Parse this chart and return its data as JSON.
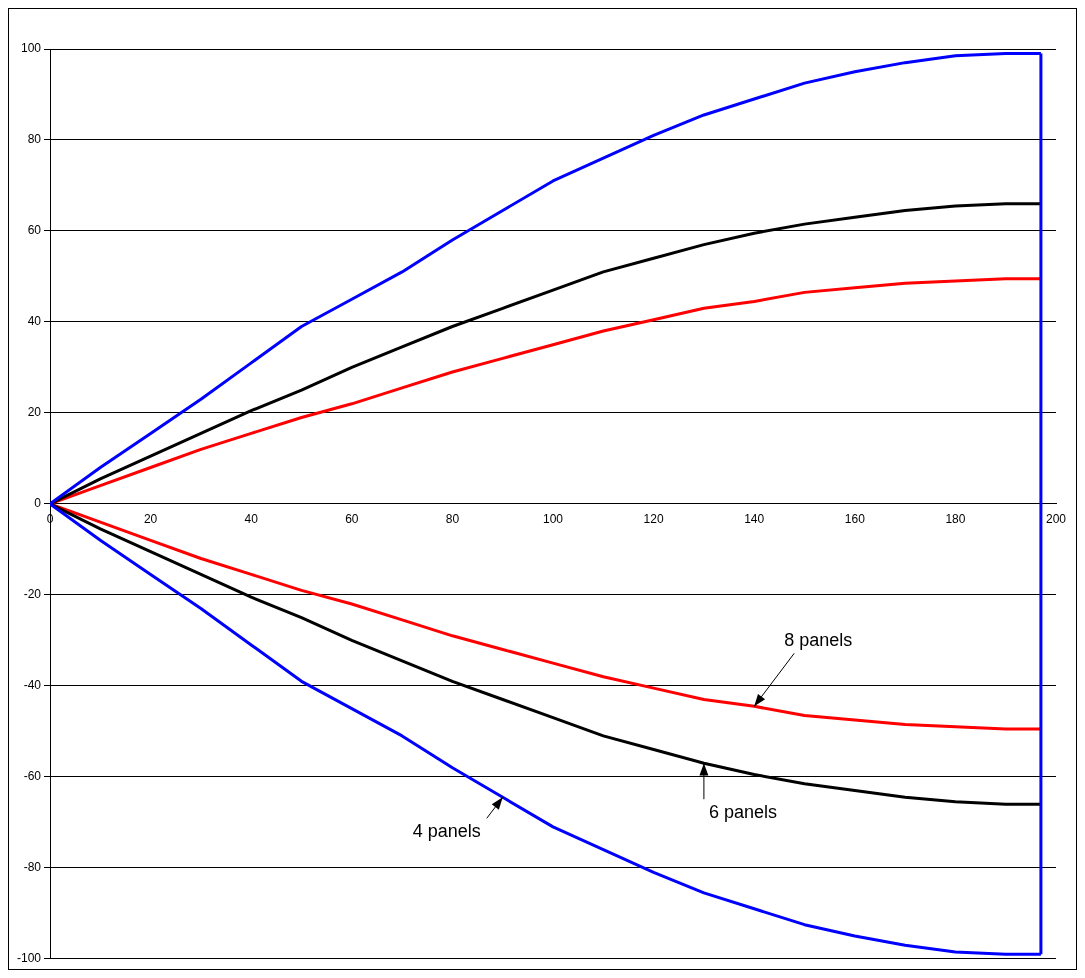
{
  "chart_data": {
    "type": "line",
    "xlim": [
      0,
      200
    ],
    "xticks": [
      0,
      20,
      40,
      60,
      80,
      100,
      120,
      140,
      160,
      180,
      200
    ],
    "ylim": [
      -100,
      100
    ],
    "yticks": [
      -100,
      -80,
      -60,
      -40,
      -20,
      0,
      20,
      40,
      60,
      80,
      100
    ],
    "grid": "y",
    "legend": false,
    "marker": "none",
    "line_style": "solid",
    "series": [
      {
        "color": "#0000ff",
        "x": [
          0,
          10,
          20,
          30,
          40,
          50,
          60,
          70,
          80,
          90,
          100,
          110,
          120,
          130,
          140,
          150,
          160,
          170,
          180,
          190,
          197
        ],
        "values": [
          0,
          8,
          15.5,
          23,
          31,
          39,
          45,
          51,
          58,
          64.5,
          71,
          76,
          81,
          85.5,
          89,
          92.5,
          95,
          97,
          98.5,
          99,
          99
        ]
      },
      {
        "color": "#0000ff",
        "x": [
          0,
          10,
          20,
          30,
          40,
          50,
          60,
          70,
          80,
          90,
          100,
          110,
          120,
          130,
          140,
          150,
          160,
          170,
          180,
          190,
          197
        ],
        "values": [
          0,
          -8,
          -15.5,
          -23,
          -31,
          -39,
          -45,
          -51,
          -58,
          -64.5,
          -71,
          -76,
          -81,
          -85.5,
          -89,
          -92.5,
          -95,
          -97,
          -98.5,
          -99,
          -99
        ]
      },
      {
        "color": "#000000",
        "x": [
          0,
          10,
          20,
          30,
          40,
          50,
          60,
          70,
          80,
          90,
          100,
          110,
          120,
          130,
          140,
          150,
          160,
          170,
          180,
          190,
          197
        ],
        "values": [
          0,
          5.5,
          10.5,
          15.5,
          20.5,
          25,
          30,
          34.5,
          39,
          43,
          47,
          51,
          54,
          57,
          59.5,
          61.5,
          63,
          64.5,
          65.5,
          66,
          66
        ]
      },
      {
        "color": "#000000",
        "x": [
          0,
          10,
          20,
          30,
          40,
          50,
          60,
          70,
          80,
          90,
          100,
          110,
          120,
          130,
          140,
          150,
          160,
          170,
          180,
          190,
          197
        ],
        "values": [
          0,
          -5.5,
          -10.5,
          -15.5,
          -20.5,
          -25,
          -30,
          -34.5,
          -39,
          -43,
          -47,
          -51,
          -54,
          -57,
          -59.5,
          -61.5,
          -63,
          -64.5,
          -65.5,
          -66,
          -66
        ]
      },
      {
        "color": "#ff0000",
        "x": [
          0,
          10,
          20,
          30,
          40,
          50,
          60,
          70,
          80,
          90,
          100,
          110,
          120,
          130,
          140,
          150,
          160,
          170,
          180,
          190,
          197
        ],
        "values": [
          0,
          4,
          8,
          12,
          15.5,
          19,
          22,
          25.5,
          29,
          32,
          35,
          38,
          40.5,
          43,
          44.5,
          46.5,
          47.5,
          48.5,
          49,
          49.5,
          49.5
        ]
      },
      {
        "color": "#ff0000",
        "x": [
          0,
          10,
          20,
          30,
          40,
          50,
          60,
          70,
          80,
          90,
          100,
          110,
          120,
          130,
          140,
          150,
          160,
          170,
          180,
          190,
          197
        ],
        "values": [
          0,
          -4,
          -8,
          -12,
          -15.5,
          -19,
          -22,
          -25.5,
          -29,
          -32,
          -35,
          -38,
          -40.5,
          -43,
          -44.5,
          -46.5,
          -47.5,
          -48.5,
          -49,
          -49.5,
          -49.5
        ]
      }
    ],
    "ref_lines": [
      {
        "axis": "x",
        "value": 197,
        "color": "#0000ff"
      }
    ],
    "annotations": [
      {
        "text": "4 panels",
        "x": 90,
        "y": -64.5
      },
      {
        "text": "6 panels",
        "x": 130,
        "y": -57
      },
      {
        "text": "8 panels",
        "x": 140,
        "y": -44.5
      }
    ]
  }
}
